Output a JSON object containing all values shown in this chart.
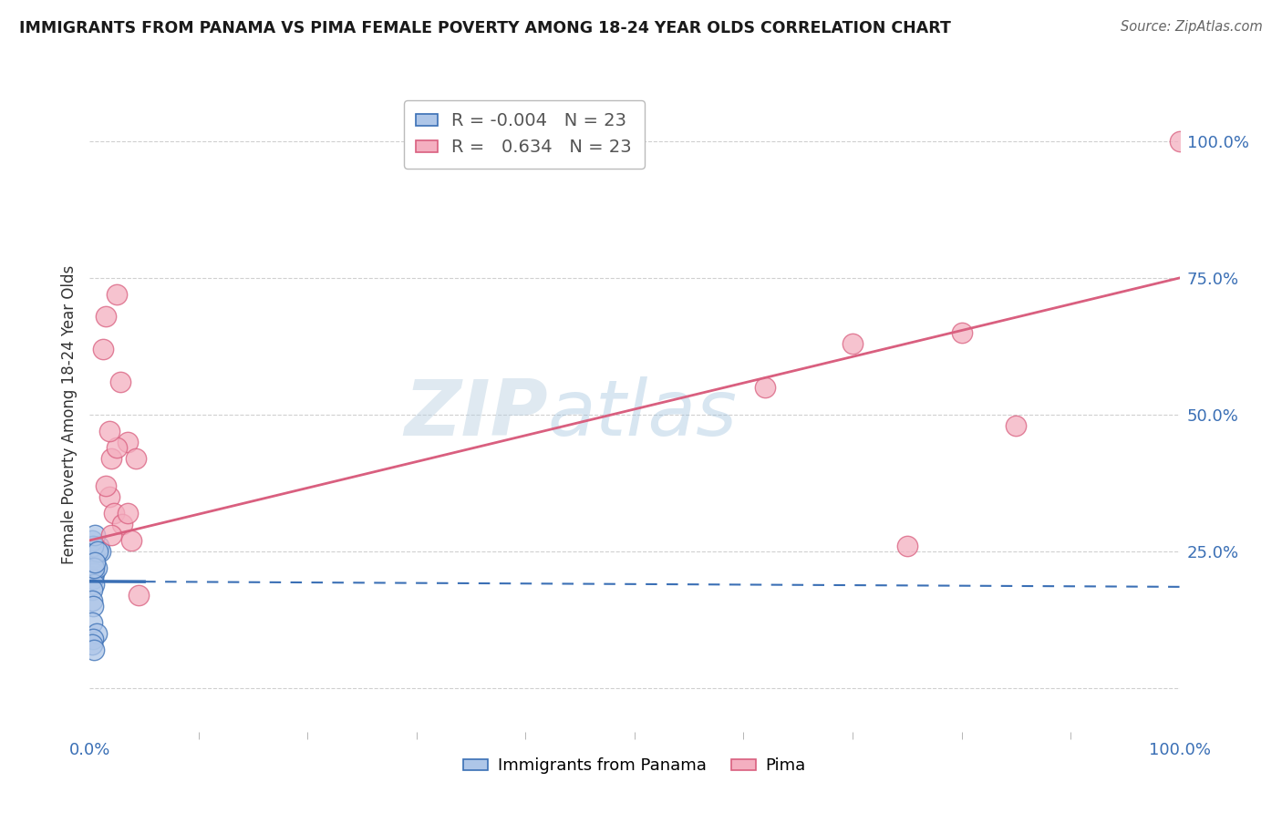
{
  "title": "IMMIGRANTS FROM PANAMA VS PIMA FEMALE POVERTY AMONG 18-24 YEAR OLDS CORRELATION CHART",
  "source": "Source: ZipAtlas.com",
  "xlabel_blue": "Immigrants from Panama",
  "xlabel_pink": "Pima",
  "ylabel": "Female Poverty Among 18-24 Year Olds",
  "legend_blue_R": "-0.004",
  "legend_blue_N": "23",
  "legend_pink_R": "0.634",
  "legend_pink_N": "23",
  "blue_x": [
    0.3,
    0.5,
    0.2,
    0.8,
    0.4,
    0.3,
    0.6,
    1.0,
    0.4,
    0.2,
    0.2,
    0.3,
    0.5,
    0.2,
    0.3,
    0.7,
    0.4,
    0.5,
    0.2,
    0.6,
    0.3,
    0.2,
    0.4
  ],
  "blue_y": [
    22,
    24,
    25,
    26,
    21,
    20,
    22,
    25,
    19,
    18,
    27,
    26,
    28,
    16,
    15,
    25,
    22,
    23,
    12,
    10,
    9,
    8,
    7
  ],
  "pink_x": [
    1.5,
    2.5,
    1.2,
    2.8,
    3.5,
    2.0,
    1.8,
    2.2,
    3.0,
    3.8,
    1.5,
    2.0,
    4.2,
    3.5,
    75,
    80,
    62,
    70,
    85,
    100,
    2.5,
    4.5,
    1.8
  ],
  "pink_y": [
    68,
    72,
    62,
    56,
    45,
    42,
    35,
    32,
    30,
    27,
    37,
    28,
    42,
    32,
    26,
    65,
    55,
    63,
    48,
    100,
    44,
    17,
    47
  ],
  "blue_color": "#aec6e8",
  "pink_color": "#f4afc0",
  "blue_line_color": "#3a6fb5",
  "pink_line_color": "#d95f7f",
  "blue_trend_y_start": 19.5,
  "blue_trend_y_end": 18.5,
  "pink_trend_y_start": 27.0,
  "pink_trend_y_end": 75.0,
  "watermark_text": "ZIP",
  "watermark_text2": "atlas",
  "xlim": [
    0,
    100
  ],
  "ylim": [
    -8,
    108
  ],
  "ytick_positions": [
    0,
    25,
    50,
    75,
    100
  ],
  "ytick_labels": [
    "",
    "25.0%",
    "50.0%",
    "75.0%",
    "100.0%"
  ],
  "xtick_major": [
    0,
    100
  ],
  "xtick_minor": [
    10,
    20,
    30,
    40,
    50,
    60,
    70,
    80,
    90
  ],
  "grid_color": "#d0d0d0",
  "background_color": "#ffffff"
}
